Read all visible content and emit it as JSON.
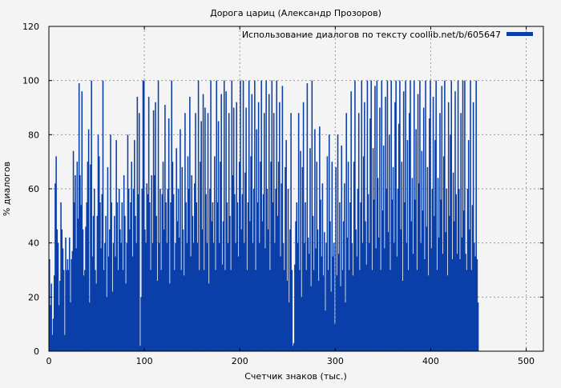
{
  "chart_data": {
    "type": "bar",
    "title": "Дорога цариц (Александр Прозоров)",
    "xlabel": "Счетчик знаков (тыс.)",
    "ylabel": "% диалогов",
    "xlim": [
      0,
      518
    ],
    "ylim": [
      0,
      120
    ],
    "xticks": [
      0,
      100,
      200,
      300,
      400,
      500
    ],
    "yticks": [
      0,
      20,
      40,
      60,
      80,
      100,
      120
    ],
    "grid": true,
    "legend_position": "top-right",
    "series": [
      {
        "name": "Использование диалогов по тексту coollib.net/b/605647",
        "color": "#0a3ea8",
        "x_step": 1,
        "values": [
          34,
          17,
          25,
          6,
          12,
          28,
          62,
          72,
          45,
          40,
          17,
          26,
          55,
          45,
          38,
          30,
          6,
          42,
          30,
          34,
          30,
          42,
          18,
          34,
          37,
          74,
          55,
          65,
          38,
          70,
          49,
          99,
          65,
          54,
          96,
          45,
          28,
          30,
          46,
          55,
          70,
          82,
          18,
          69,
          100,
          35,
          50,
          60,
          30,
          25,
          50,
          80,
          72,
          55,
          38,
          58,
          100,
          30,
          40,
          50,
          20,
          68,
          35,
          45,
          80,
          55,
          22,
          40,
          50,
          35,
          78,
          55,
          30,
          60,
          45,
          40,
          55,
          30,
          65,
          50,
          25,
          40,
          80,
          60,
          45,
          55,
          70,
          35,
          60,
          78,
          50,
          40,
          94,
          58,
          88,
          2,
          20,
          60,
          100,
          100,
          45,
          40,
          62,
          58,
          94,
          55,
          30,
          65,
          40,
          89,
          65,
          92,
          50,
          26,
          100,
          40,
          60,
          30,
          58,
          70,
          45,
          91,
          55,
          40,
          60,
          86,
          25,
          55,
          100,
          70,
          58,
          30,
          40,
          75,
          48,
          60,
          42,
          82,
          30,
          68,
          45,
          28,
          88,
          55,
          40,
          72,
          60,
          94,
          35,
          65,
          50,
          40,
          62,
          88,
          55,
          40,
          100,
          30,
          70,
          85,
          45,
          95,
          30,
          90,
          58,
          40,
          88,
          25,
          60,
          100,
          48,
          55,
          40,
          72,
          30,
          100,
          55,
          85,
          40,
          70,
          95,
          32,
          48,
          100,
          30,
          96,
          55,
          40,
          88,
          50,
          30,
          100,
          65,
          90,
          58,
          40,
          92,
          55,
          35,
          70,
          100,
          45,
          58,
          100,
          40,
          66,
          90,
          30,
          55,
          100,
          48,
          72,
          95,
          40,
          60,
          100,
          30,
          82,
          55,
          92,
          40,
          70,
          100,
          48,
          58,
          88,
          38,
          100,
          60,
          45,
          95,
          30,
          70,
          100,
          55,
          88,
          40,
          60,
          100,
          50,
          70,
          92,
          35,
          62,
          98,
          40,
          30,
          68,
          78,
          26,
          60,
          18,
          45,
          88,
          30,
          2,
          3,
          32,
          48,
          55,
          40,
          88,
          30,
          74,
          20,
          68,
          92,
          40,
          55,
          30,
          99,
          42,
          36,
          75,
          24,
          100,
          50,
          30,
          82,
          38,
          70,
          45,
          26,
          83,
          56,
          35,
          62,
          28,
          44,
          15,
          40,
          72,
          30,
          80,
          48,
          22,
          70,
          35,
          40,
          10,
          68,
          28,
          80,
          36,
          55,
          24,
          76,
          30,
          48,
          62,
          18,
          88,
          42,
          70,
          30,
          55,
          96,
          40,
          28,
          70,
          100,
          45,
          35,
          60,
          88,
          30,
          55,
          100,
          40,
          72,
          92,
          48,
          32,
          100,
          58,
          40,
          86,
          100,
          30,
          75,
          56,
          98,
          38,
          100,
          64,
          42,
          90,
          30,
          100,
          52,
          76,
          38,
          94,
          60,
          100,
          44,
          80,
          30,
          100,
          56,
          68,
          40,
          92,
          100,
          35,
          60,
          84,
          100,
          45,
          70,
          26,
          96,
          55,
          100,
          40,
          78,
          30,
          88,
          100,
          48,
          64,
          36,
          100,
          56,
          82,
          30,
          95,
          62,
          100,
          40,
          74,
          52,
          90,
          34,
          100,
          46,
          68,
          28,
          86,
          100,
          38,
          60,
          94,
          50,
          78,
          100,
          30,
          64,
          42,
          88,
          56,
          98,
          36,
          72,
          100,
          44,
          60,
          28,
          92,
          50,
          80,
          100,
          34,
          66,
          48,
          96,
          58,
          36,
          100,
          60,
          34,
          88,
          42,
          100,
          52,
          100,
          36,
          30,
          60,
          78,
          45,
          100,
          30,
          54,
          92,
          40,
          35,
          100,
          34,
          18
        ]
      }
    ]
  }
}
